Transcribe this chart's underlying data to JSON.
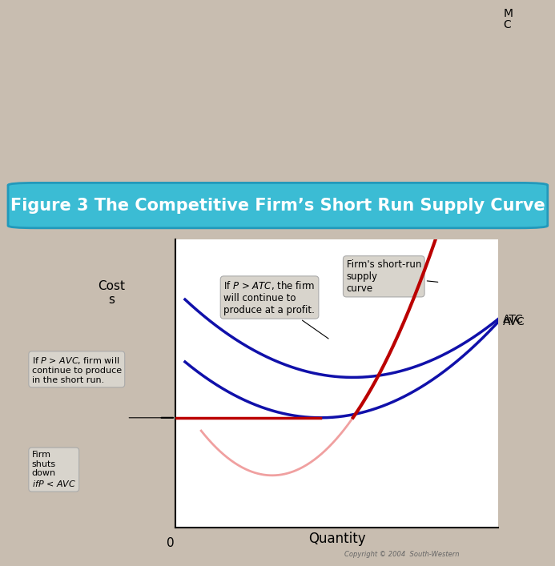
{
  "title": "Figure 3 The Competitive Firm’s Short Run Supply Curve",
  "title_bg": "#3bbcd4",
  "title_color": "white",
  "title_fontsize": 15,
  "bg_color": "#c8bdb0",
  "plot_bg": "white",
  "xlabel": "Quantity",
  "ylabel": "Cost\ns",
  "curve_color_blue": "#1010aa",
  "curve_color_red": "#bb0000",
  "curve_color_pink": "#f0a0a0",
  "annotation_box_color": "#d8d4cc",
  "annotation_box_edge": "#aaaaaa",
  "copyright_text": "Copyright © 2004  South-Western",
  "annotation_atc": "If $P$ > $ATC$, the firm\nwill continue to\nproduce at a profit.",
  "annotation_avc": "If $P$ > $AVC$, firm will\ncontinue to produce\nin the short run.",
  "annotation_supply": "Firm's short-run\nsupply\ncurve",
  "annotation_shutdown": "Firm\nshuts\ndown\n$if P$ < $AVC$"
}
